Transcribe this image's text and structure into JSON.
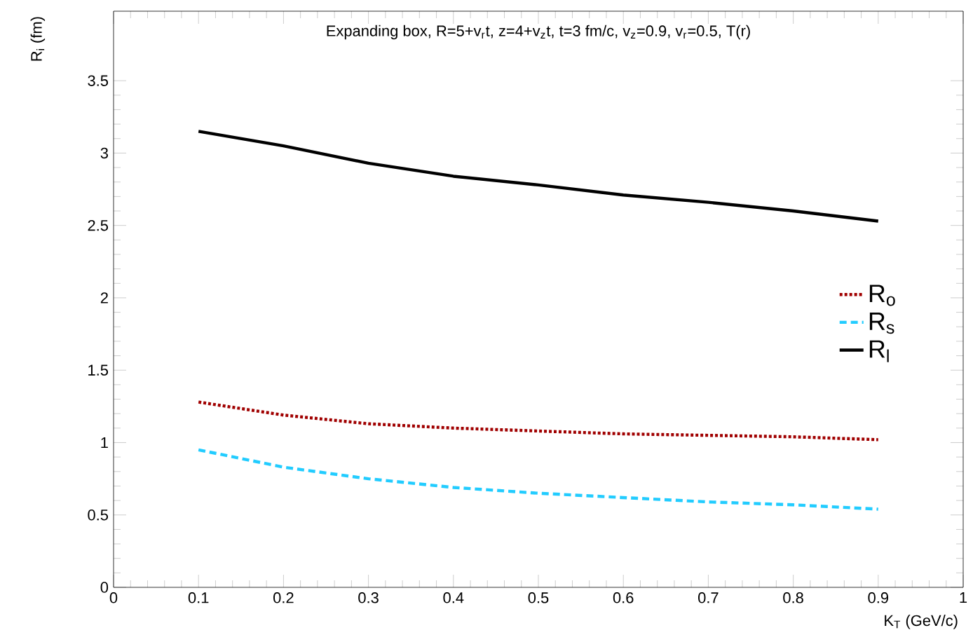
{
  "chart_data": {
    "type": "line",
    "title": "Expanding box, R=5+v$_{r}$t, z=4+v$_{z}$t, t=3 fm/c, v$_{z}$=0.9, v$_{r}$=0.5, T(r)",
    "xlabel": "K$_{T}$ (GeV/c)",
    "ylabel": "R$_{i}$ (fm)",
    "x": [
      0.1,
      0.2,
      0.3,
      0.4,
      0.5,
      0.6,
      0.7,
      0.8,
      0.9
    ],
    "series": [
      {
        "name": "R$_{o}$",
        "color": "#a00000",
        "line_style": "dotted",
        "values": [
          1.28,
          1.19,
          1.13,
          1.1,
          1.08,
          1.06,
          1.05,
          1.04,
          1.02
        ]
      },
      {
        "name": "R$_{s}$",
        "color": "#22ccff",
        "line_style": "dashed",
        "values": [
          0.95,
          0.83,
          0.75,
          0.69,
          0.65,
          0.62,
          0.59,
          0.57,
          0.54
        ]
      },
      {
        "name": "R$_{l}$",
        "color": "#000000",
        "line_style": "solid",
        "values": [
          3.15,
          3.05,
          2.93,
          2.84,
          2.78,
          2.71,
          2.66,
          2.6,
          2.53
        ]
      }
    ],
    "xlim": [
      0,
      1
    ],
    "ylim": [
      0,
      3.98
    ],
    "xticks": [
      0,
      0.1,
      0.2,
      0.3,
      0.4,
      0.5,
      0.6,
      0.7,
      0.8,
      0.9,
      1
    ],
    "yticks": [
      0,
      0.5,
      1,
      1.5,
      2,
      2.5,
      3,
      3.5
    ],
    "legend": "right",
    "grid": false,
    "marker": "none"
  }
}
